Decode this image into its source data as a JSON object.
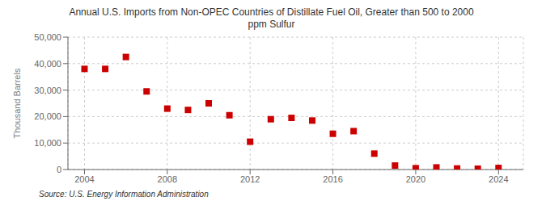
{
  "chart_data": {
    "type": "scatter",
    "title": "Annual U.S. Imports from Non-OPEC Countries of Distillate Fuel Oil, Greater than 500 to 2000\nppm Sulfur",
    "y_label": "Thousand Barrels",
    "annotations": [
      "Source: U.S. Energy Information Administration"
    ],
    "x": [
      2004,
      2005,
      2006,
      2007,
      2008,
      2009,
      2010,
      2011,
      2012,
      2013,
      2014,
      2015,
      2016,
      2017,
      2018,
      2019,
      2020,
      2021,
      2022,
      2023,
      2024
    ],
    "values": [
      38000,
      38000,
      42500,
      29500,
      23000,
      22500,
      25000,
      20500,
      10500,
      19000,
      19500,
      18500,
      13500,
      14500,
      6000,
      1500,
      500,
      800,
      400,
      300,
      600
    ],
    "color": "#cc0000",
    "marker": "square",
    "xlim": [
      2003.2,
      2025.2
    ],
    "xticks": [
      2004,
      2008,
      2012,
      2016,
      2020,
      2024
    ],
    "ylim": [
      0,
      50000
    ],
    "yticks": [
      0,
      {
        "value": 10000,
        "label": "10,000"
      },
      {
        "value": 20000,
        "label": "20,000"
      },
      {
        "value": 30000,
        "label": "30,000"
      },
      {
        "value": 40000,
        "label": "40,000"
      },
      {
        "value": 50000,
        "label": "50,000"
      }
    ],
    "grid": true
  }
}
